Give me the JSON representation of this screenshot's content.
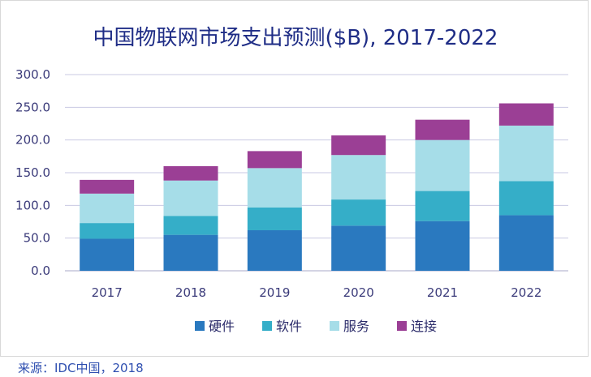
{
  "chart_data": {
    "type": "bar",
    "stacked": true,
    "title": "中国物联网市场支出预测($B), 2017-2022",
    "categories": [
      "2017",
      "2018",
      "2019",
      "2020",
      "2021",
      "2022"
    ],
    "series": [
      {
        "name": "硬件",
        "color": "#2a79bf",
        "values": [
          49,
          55,
          62,
          69,
          76,
          85
        ]
      },
      {
        "name": "软件",
        "color": "#35aec8",
        "values": [
          24,
          29,
          35,
          40,
          46,
          52
        ]
      },
      {
        "name": "服务",
        "color": "#a6dde8",
        "values": [
          45,
          54,
          60,
          68,
          78,
          85
        ]
      },
      {
        "name": "连接",
        "color": "#9b3f95",
        "values": [
          21,
          22,
          26,
          30,
          31,
          34
        ]
      }
    ],
    "ylim": [
      0,
      300
    ],
    "yticks": [
      "300.0",
      "250.0",
      "200.0",
      "150.0",
      "100.0",
      "50.0",
      "0.0"
    ],
    "ytick_values": [
      300,
      250,
      200,
      150,
      100,
      50,
      0
    ],
    "grid": true,
    "legend_position": "bottom"
  },
  "source_note": "来源：IDC中国，2018"
}
